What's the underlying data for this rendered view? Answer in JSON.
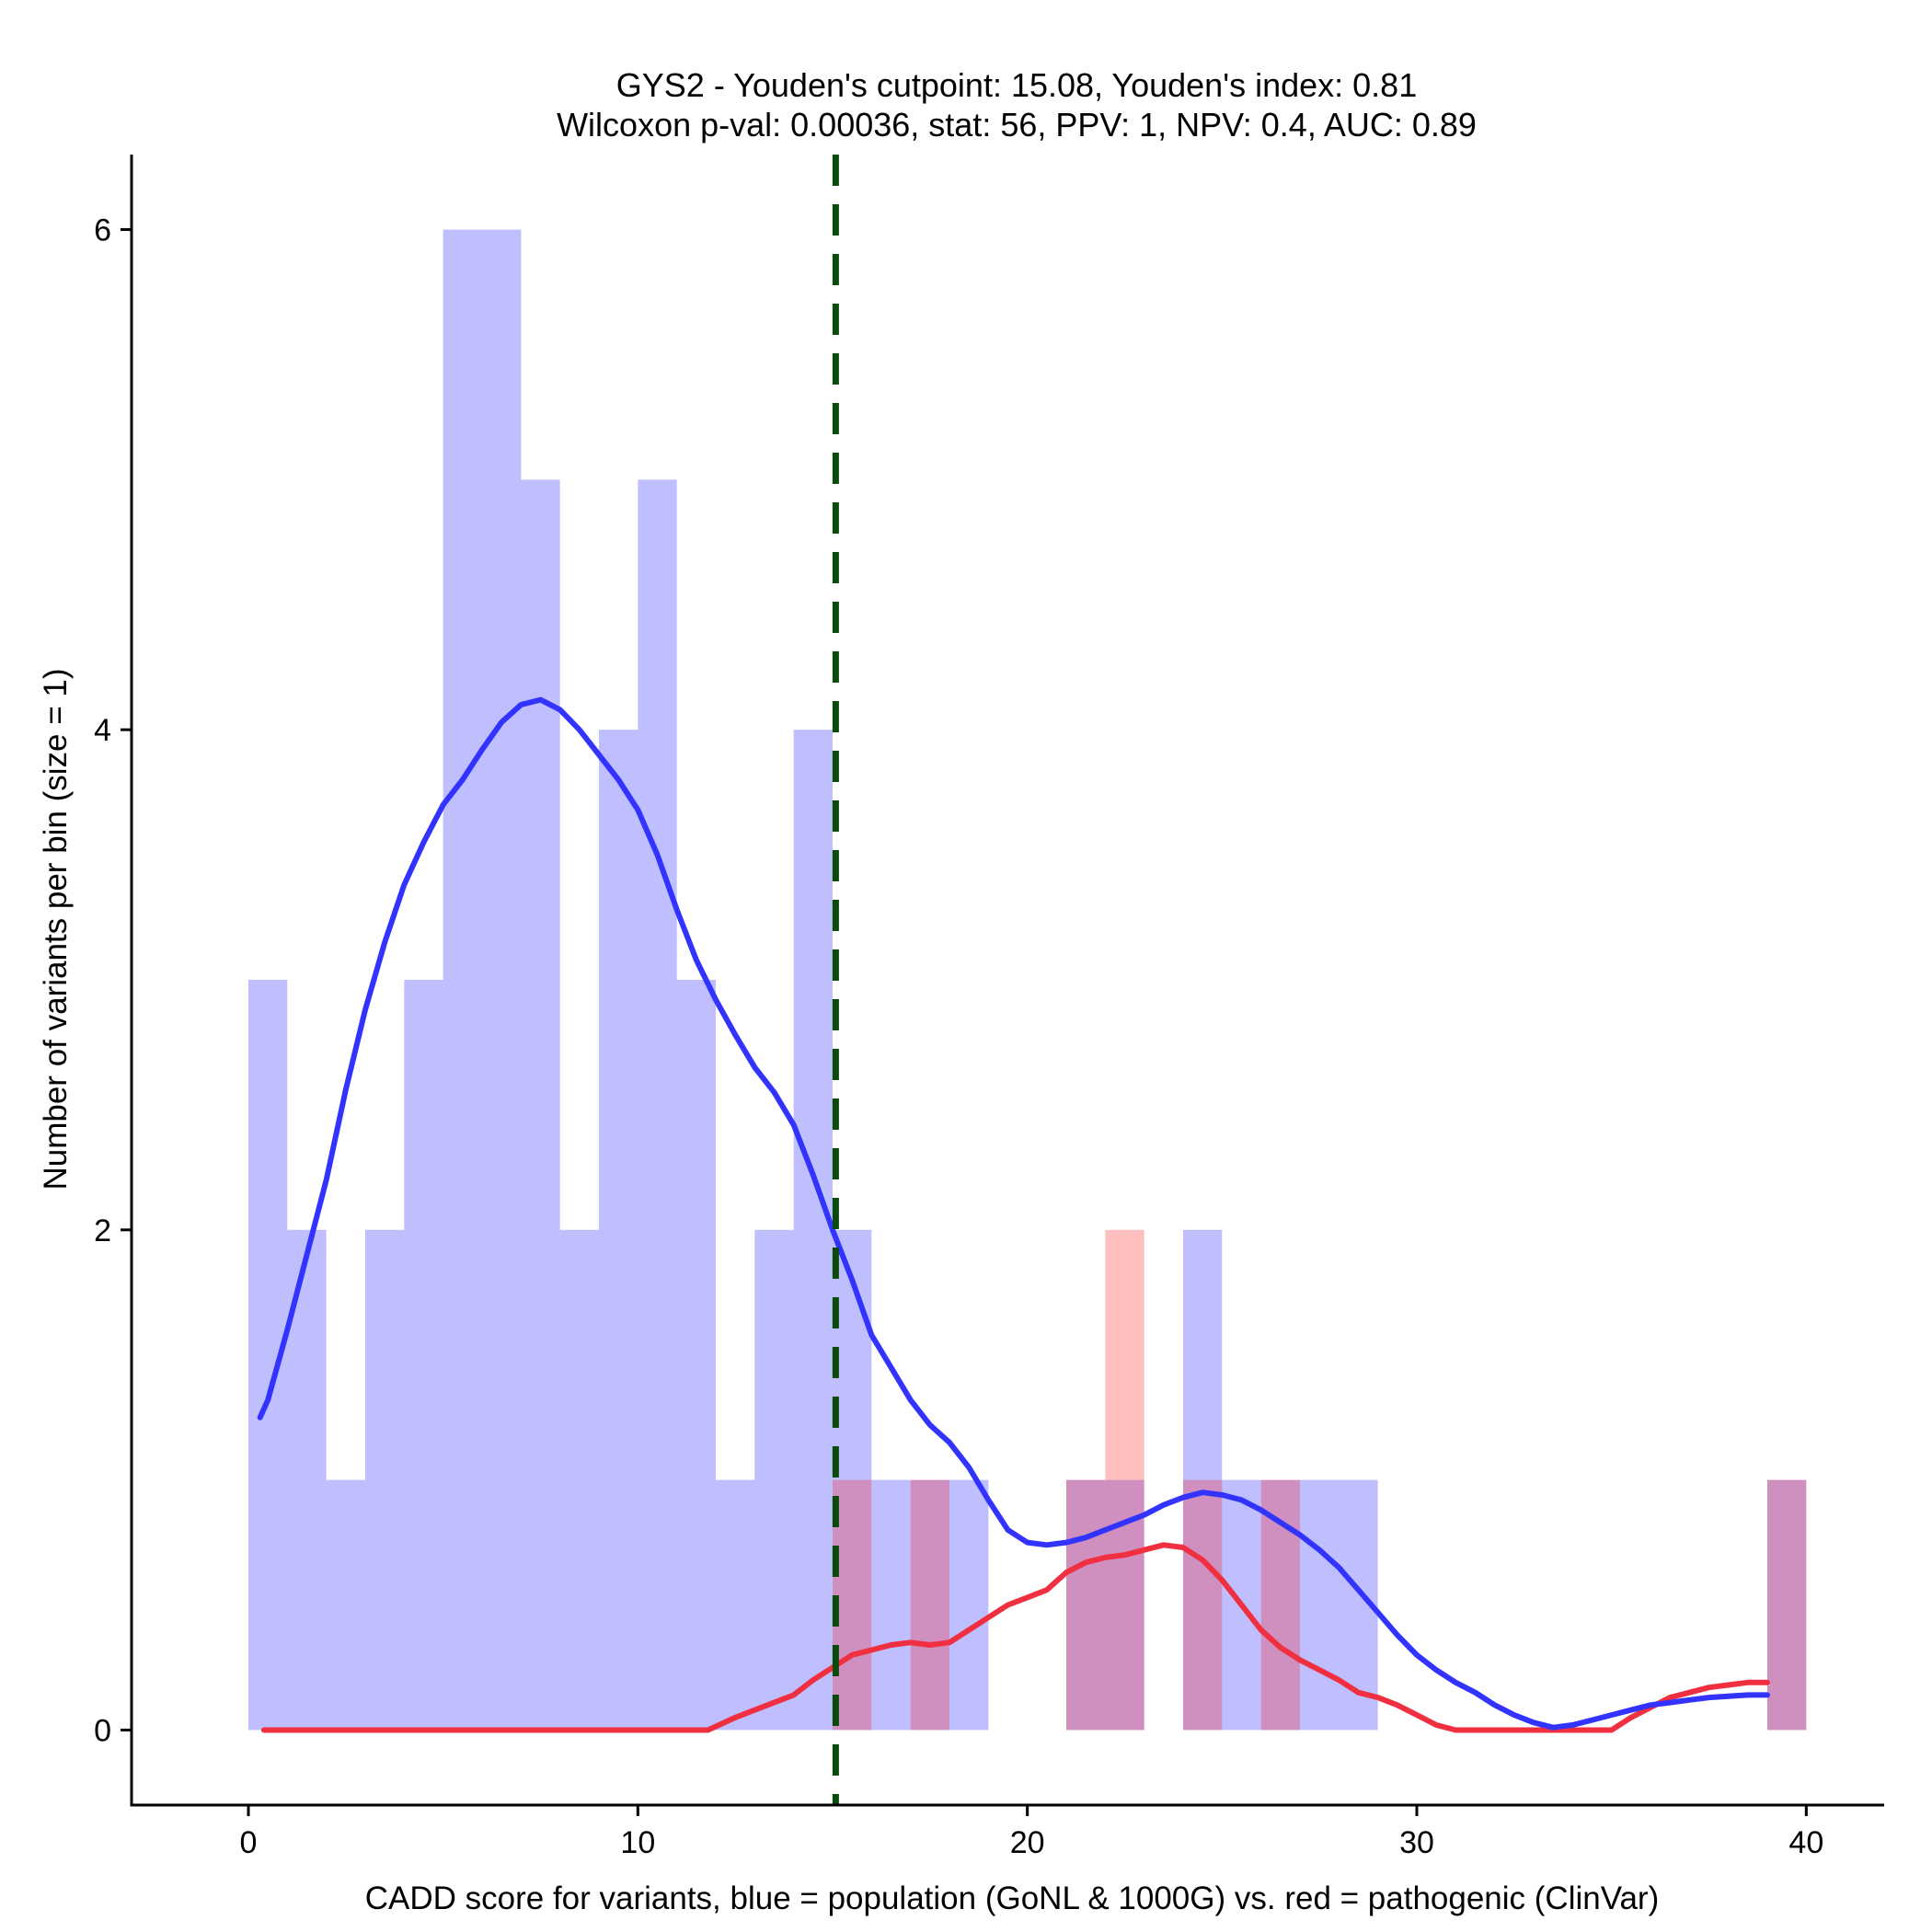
{
  "chart_data": {
    "type": "bar",
    "title_line1": "GYS2 - Youden's cutpoint: 15.08, Youden's index: 0.81",
    "title_line2": "Wilcoxon p-val: 0.00036, stat: 56, PPV: 1, NPV: 0.4, AUC: 0.89",
    "xlabel": "CADD score for variants, blue = population (GoNL & 1000G) vs. red = pathogenic (ClinVar)",
    "ylabel": "Number of variants per bin (size = 1)",
    "xlim": [
      -3,
      42
    ],
    "ylim": [
      -0.3,
      6.3
    ],
    "x_ticks": [
      0,
      10,
      20,
      30,
      40
    ],
    "y_ticks": [
      0,
      2,
      4,
      6
    ],
    "bin_width": 1,
    "cutpoint": 15.08,
    "colors": {
      "population_fill": "#0000ff",
      "pathogenic_fill": "#ff0000",
      "population_line": "#3333ff",
      "pathogenic_line": "#f03040",
      "cutpoint_line": "#0a4a0a"
    },
    "series": [
      {
        "name": "population",
        "bins": [
          {
            "x": 0,
            "count": 3
          },
          {
            "x": 1,
            "count": 2
          },
          {
            "x": 2,
            "count": 1
          },
          {
            "x": 3,
            "count": 2
          },
          {
            "x": 4,
            "count": 3
          },
          {
            "x": 5,
            "count": 6
          },
          {
            "x": 6,
            "count": 6
          },
          {
            "x": 7,
            "count": 5
          },
          {
            "x": 8,
            "count": 2
          },
          {
            "x": 9,
            "count": 4
          },
          {
            "x": 10,
            "count": 5
          },
          {
            "x": 11,
            "count": 3
          },
          {
            "x": 12,
            "count": 1
          },
          {
            "x": 13,
            "count": 2
          },
          {
            "x": 14,
            "count": 4
          },
          {
            "x": 15,
            "count": 2
          },
          {
            "x": 16,
            "count": 1
          },
          {
            "x": 17,
            "count": 1
          },
          {
            "x": 18,
            "count": 1
          },
          {
            "x": 21,
            "count": 1
          },
          {
            "x": 22,
            "count": 1
          },
          {
            "x": 24,
            "count": 2
          },
          {
            "x": 25,
            "count": 1
          },
          {
            "x": 26,
            "count": 1
          },
          {
            "x": 27,
            "count": 1
          },
          {
            "x": 28,
            "count": 1
          },
          {
            "x": 39,
            "count": 1
          }
        ],
        "density": [
          [
            0.3,
            1.25
          ],
          [
            0.5,
            1.32
          ],
          [
            1.0,
            1.6
          ],
          [
            1.5,
            1.9
          ],
          [
            2.0,
            2.2
          ],
          [
            2.5,
            2.56
          ],
          [
            3.0,
            2.88
          ],
          [
            3.5,
            3.15
          ],
          [
            4.0,
            3.38
          ],
          [
            4.5,
            3.55
          ],
          [
            5.0,
            3.7
          ],
          [
            5.5,
            3.8
          ],
          [
            6.0,
            3.92
          ],
          [
            6.5,
            4.03
          ],
          [
            7.0,
            4.1
          ],
          [
            7.5,
            4.12
          ],
          [
            8.0,
            4.08
          ],
          [
            8.5,
            4.0
          ],
          [
            9.0,
            3.9
          ],
          [
            9.5,
            3.8
          ],
          [
            10.0,
            3.68
          ],
          [
            10.5,
            3.5
          ],
          [
            11.0,
            3.28
          ],
          [
            11.5,
            3.08
          ],
          [
            12.0,
            2.92
          ],
          [
            12.5,
            2.78
          ],
          [
            13.0,
            2.65
          ],
          [
            13.5,
            2.55
          ],
          [
            14.0,
            2.42
          ],
          [
            14.5,
            2.22
          ],
          [
            15.0,
            2.0
          ],
          [
            15.5,
            1.8
          ],
          [
            16.0,
            1.58
          ],
          [
            16.5,
            1.45
          ],
          [
            17.0,
            1.32
          ],
          [
            17.5,
            1.22
          ],
          [
            18.0,
            1.15
          ],
          [
            18.5,
            1.05
          ],
          [
            19.0,
            0.92
          ],
          [
            19.5,
            0.8
          ],
          [
            20.0,
            0.75
          ],
          [
            20.5,
            0.74
          ],
          [
            21.0,
            0.75
          ],
          [
            21.5,
            0.77
          ],
          [
            22.0,
            0.8
          ],
          [
            22.5,
            0.83
          ],
          [
            23.0,
            0.86
          ],
          [
            23.5,
            0.9
          ],
          [
            24.0,
            0.93
          ],
          [
            24.5,
            0.95
          ],
          [
            25.0,
            0.94
          ],
          [
            25.5,
            0.92
          ],
          [
            26.0,
            0.88
          ],
          [
            26.5,
            0.83
          ],
          [
            27.0,
            0.78
          ],
          [
            27.5,
            0.72
          ],
          [
            28.0,
            0.65
          ],
          [
            28.5,
            0.56
          ],
          [
            29.0,
            0.47
          ],
          [
            29.5,
            0.38
          ],
          [
            30.0,
            0.3
          ],
          [
            30.5,
            0.24
          ],
          [
            31.0,
            0.19
          ],
          [
            31.5,
            0.15
          ],
          [
            32.0,
            0.1
          ],
          [
            32.5,
            0.06
          ],
          [
            33.0,
            0.03
          ],
          [
            33.5,
            0.01
          ],
          [
            34.0,
            0.02
          ],
          [
            34.5,
            0.04
          ],
          [
            35.0,
            0.06
          ],
          [
            35.5,
            0.08
          ],
          [
            36.0,
            0.1
          ],
          [
            36.5,
            0.11
          ],
          [
            37.0,
            0.12
          ],
          [
            37.5,
            0.13
          ],
          [
            38.0,
            0.135
          ],
          [
            38.5,
            0.14
          ],
          [
            39.0,
            0.14
          ]
        ]
      },
      {
        "name": "pathogenic",
        "bins": [
          {
            "x": 15,
            "count": 1
          },
          {
            "x": 17,
            "count": 1
          },
          {
            "x": 21,
            "count": 1
          },
          {
            "x": 22,
            "count": 2
          },
          {
            "x": 24,
            "count": 1
          },
          {
            "x": 26,
            "count": 1
          },
          {
            "x": 39,
            "count": 1
          }
        ],
        "density": [
          [
            0.4,
            0.0
          ],
          [
            11.8,
            0.0
          ],
          [
            12.5,
            0.05
          ],
          [
            13.0,
            0.08
          ],
          [
            13.5,
            0.11
          ],
          [
            14.0,
            0.14
          ],
          [
            14.5,
            0.2
          ],
          [
            15.0,
            0.25
          ],
          [
            15.5,
            0.3
          ],
          [
            16.0,
            0.32
          ],
          [
            16.5,
            0.34
          ],
          [
            17.0,
            0.35
          ],
          [
            17.5,
            0.34
          ],
          [
            18.0,
            0.35
          ],
          [
            18.5,
            0.4
          ],
          [
            19.0,
            0.45
          ],
          [
            19.5,
            0.5
          ],
          [
            20.0,
            0.53
          ],
          [
            20.5,
            0.56
          ],
          [
            21.0,
            0.63
          ],
          [
            21.5,
            0.67
          ],
          [
            22.0,
            0.69
          ],
          [
            22.5,
            0.7
          ],
          [
            23.0,
            0.72
          ],
          [
            23.5,
            0.74
          ],
          [
            24.0,
            0.73
          ],
          [
            24.5,
            0.68
          ],
          [
            25.0,
            0.6
          ],
          [
            25.5,
            0.5
          ],
          [
            26.0,
            0.4
          ],
          [
            26.5,
            0.33
          ],
          [
            27.0,
            0.28
          ],
          [
            27.5,
            0.24
          ],
          [
            28.0,
            0.2
          ],
          [
            28.5,
            0.15
          ],
          [
            29.0,
            0.13
          ],
          [
            29.5,
            0.1
          ],
          [
            30.0,
            0.06
          ],
          [
            30.5,
            0.02
          ],
          [
            31.0,
            0.0
          ],
          [
            35.0,
            0.0
          ],
          [
            35.5,
            0.05
          ],
          [
            36.0,
            0.09
          ],
          [
            36.5,
            0.13
          ],
          [
            37.0,
            0.15
          ],
          [
            37.5,
            0.17
          ],
          [
            38.0,
            0.18
          ],
          [
            38.5,
            0.19
          ],
          [
            39.0,
            0.19
          ]
        ]
      }
    ]
  }
}
